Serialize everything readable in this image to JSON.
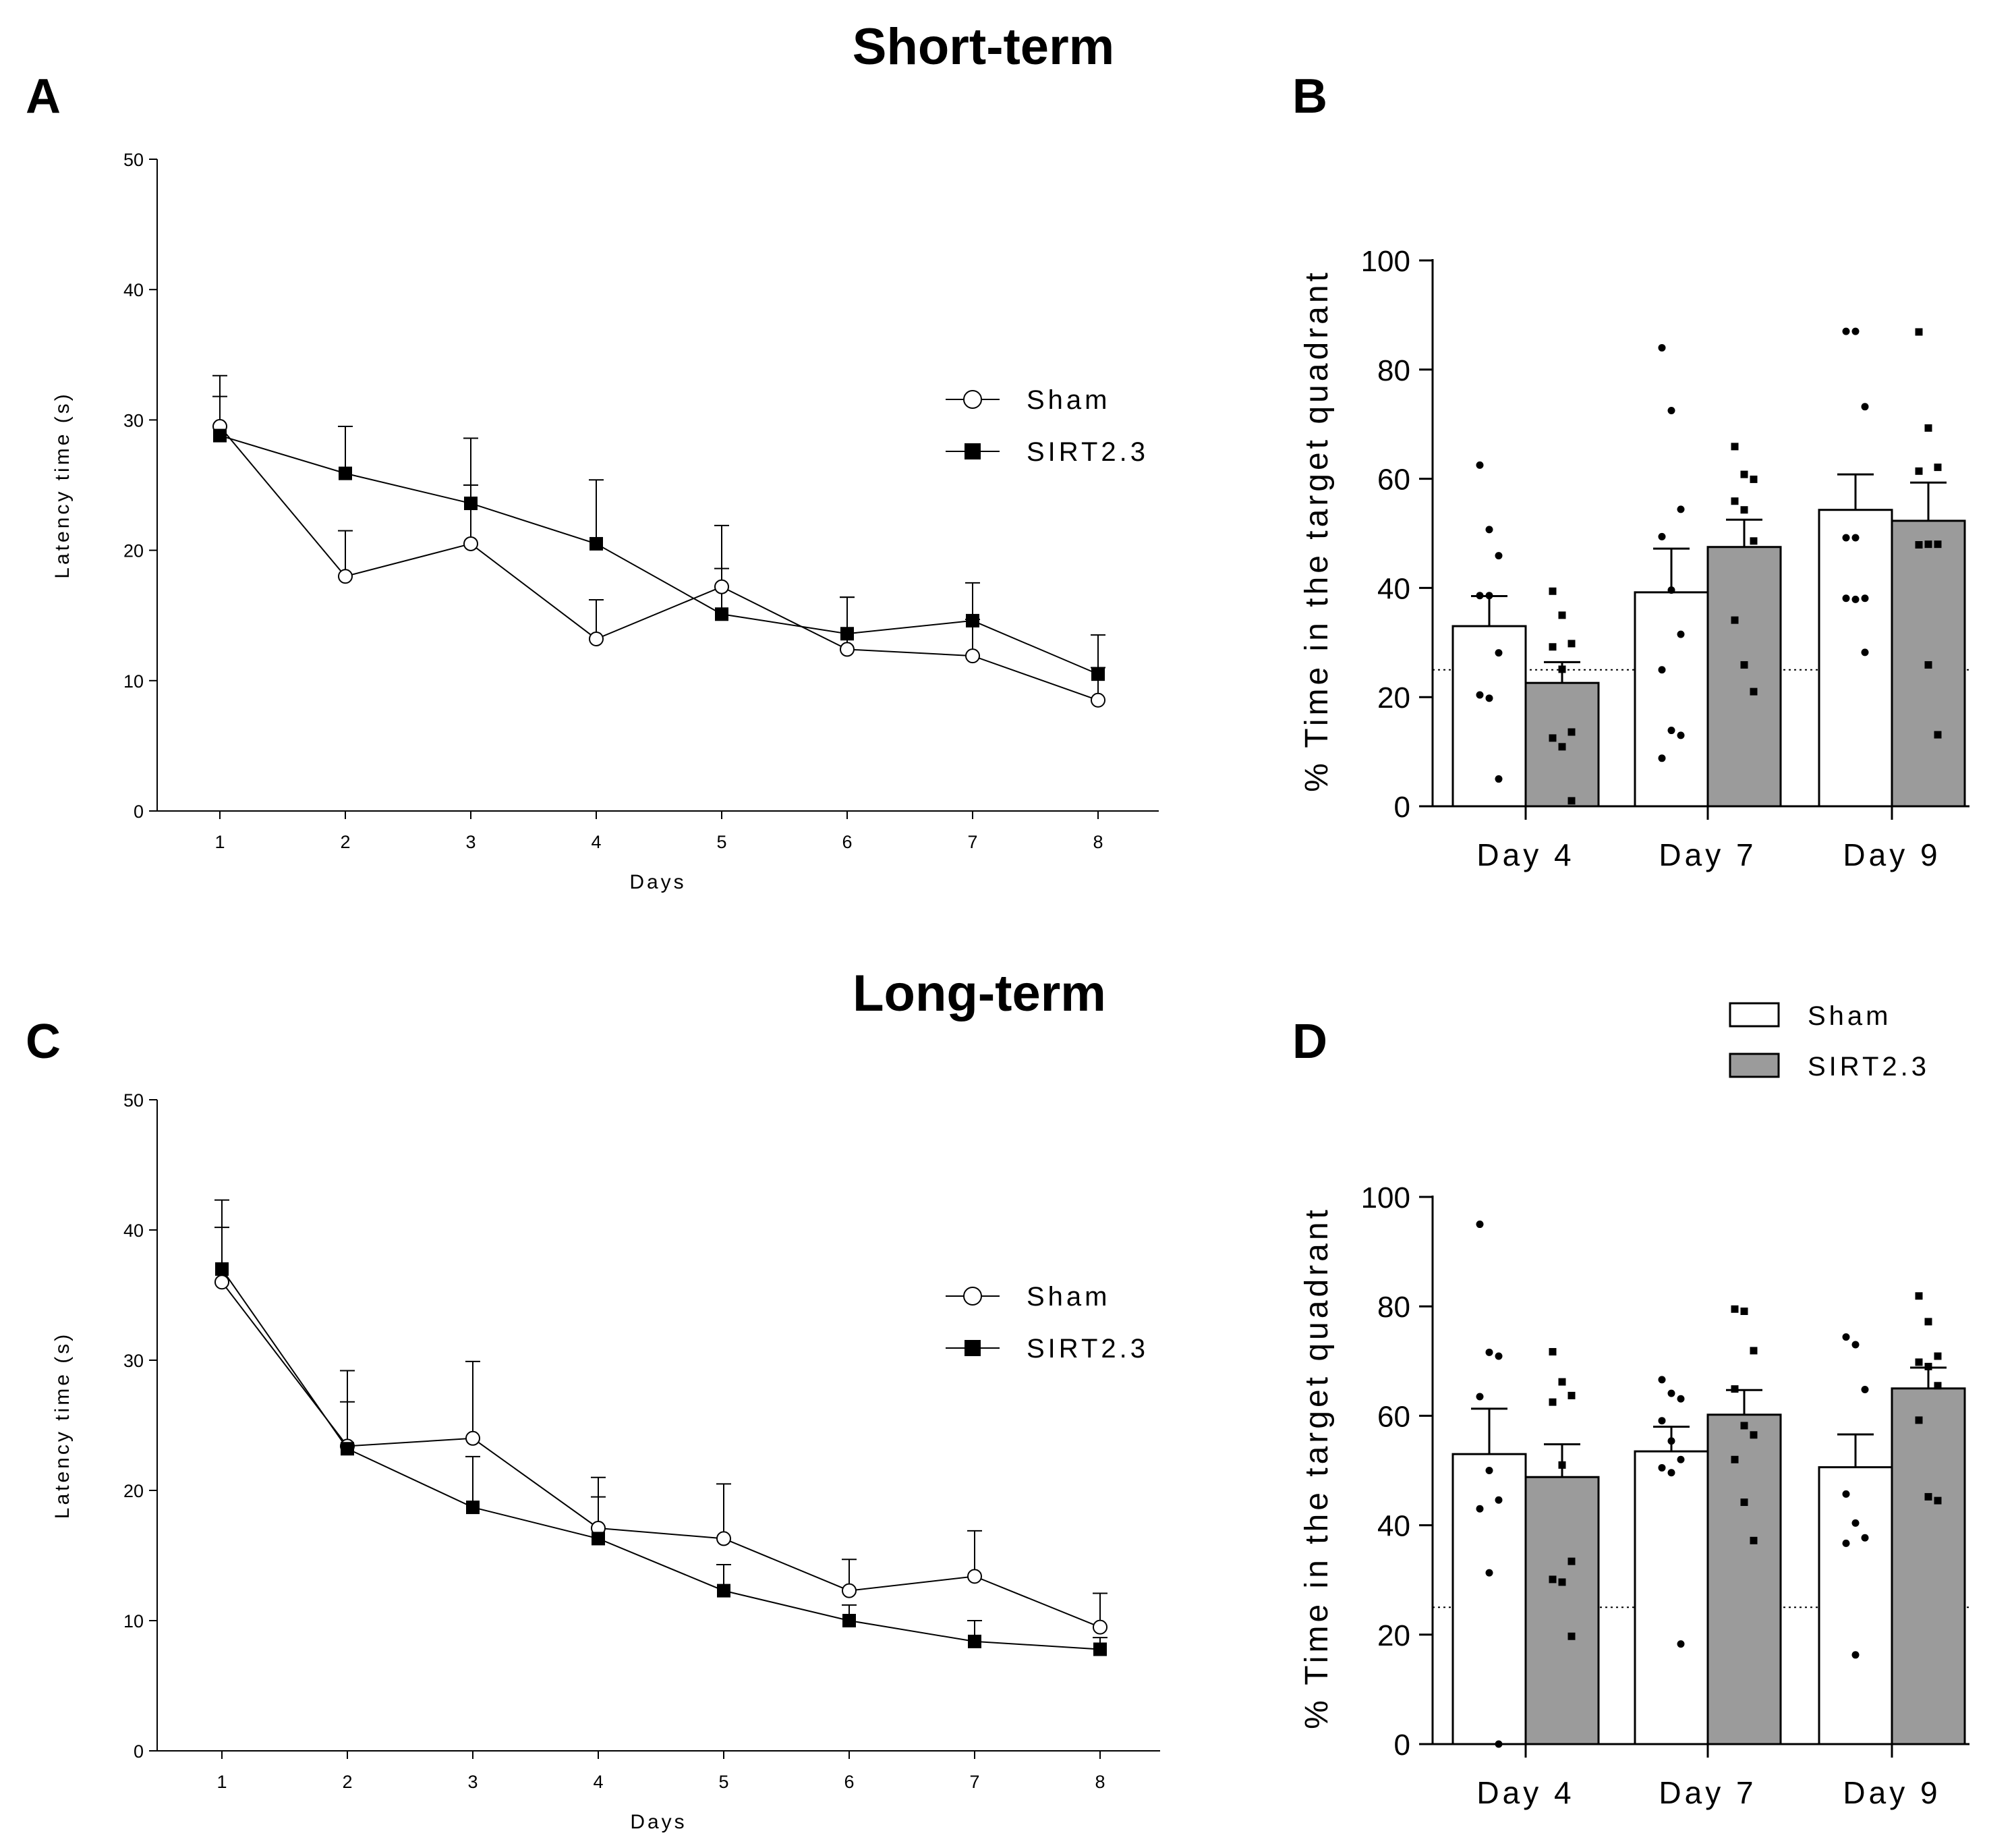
{
  "titles": {
    "short_term": "Short-term",
    "long_term": "Long-term"
  },
  "colors": {
    "sham_fill": "#ffffff",
    "sirt_fill": "#9b9b9b",
    "line": "#000000",
    "axis": "#000000"
  },
  "chart_data": [
    {
      "panel": "A",
      "type": "line",
      "title": "",
      "xlabel": "Days",
      "ylabel": "Latency time (s)",
      "x": [
        1,
        2,
        3,
        4,
        5,
        6,
        7,
        8
      ],
      "xticks": [
        "1",
        "2",
        "3",
        "4",
        "5",
        "6",
        "7",
        "8"
      ],
      "ylim": [
        0,
        50
      ],
      "yticks": [
        "0",
        "10",
        "20",
        "30",
        "40",
        "50"
      ],
      "legend": {
        "placement": "right",
        "entries": [
          "Sham",
          "SIRT2.3"
        ]
      },
      "series": [
        {
          "name": "Sham",
          "marker": "open-circle",
          "values": [
            29.5,
            18.0,
            20.5,
            13.2,
            17.2,
            12.4,
            11.9,
            8.5
          ],
          "err": [
            3.9,
            3.5,
            4.5,
            3.0,
            4.7,
            4.0,
            2.8,
            2.5
          ]
        },
        {
          "name": "SIRT2.3",
          "marker": "filled-square",
          "values": [
            28.8,
            25.9,
            23.6,
            20.5,
            15.1,
            13.6,
            14.6,
            10.5
          ],
          "err": [
            3.0,
            3.6,
            5.0,
            4.9,
            3.5,
            2.8,
            2.9,
            3.0
          ]
        }
      ]
    },
    {
      "panel": "B",
      "type": "bar",
      "title": "",
      "xlabel": "",
      "ylabel": "% Time in the target quadrant",
      "categories": [
        "Day 4",
        "Day 7",
        "Day 9"
      ],
      "ylim": [
        0,
        100
      ],
      "yticks": [
        "0",
        "20",
        "40",
        "60",
        "80",
        "100"
      ],
      "reference_line": 25,
      "series": [
        {
          "name": "Sham",
          "values": [
            33.0,
            39.2,
            54.3
          ],
          "err": [
            5.5,
            8.0,
            6.5
          ],
          "points": [
            [
              62.5,
              50.7,
              45.9,
              38.6,
              38.6,
              28.1,
              20.4,
              19.8,
              5.0
            ],
            [
              84.0,
              72.5,
              54.4,
              49.4,
              39.6,
              31.5,
              25.0,
              13.9,
              13.0,
              8.8
            ],
            [
              87.0,
              87.0,
              73.2,
              49.2,
              49.2,
              38.1,
              38.1,
              37.9,
              28.2
            ]
          ]
        },
        {
          "name": "SIRT2.3",
          "values": [
            22.6,
            47.5,
            52.3
          ],
          "err": [
            3.8,
            5.0,
            7.0
          ],
          "points": [
            [
              39.4,
              35.0,
              29.8,
              29.2,
              25.1,
              13.6,
              12.5,
              10.9,
              1.0
            ],
            [
              65.9,
              60.8,
              59.9,
              55.9,
              54.3,
              48.6,
              34.1,
              25.9,
              21.0
            ],
            [
              86.9,
              69.3,
              62.1,
              61.4,
              48.0,
              48.0,
              47.9,
              25.9,
              13.1
            ]
          ]
        }
      ]
    },
    {
      "panel": "C",
      "type": "line",
      "title": "",
      "xlabel": "Days",
      "ylabel": "Latency time (s)",
      "x": [
        1,
        2,
        3,
        4,
        5,
        6,
        7,
        8
      ],
      "xticks": [
        "1",
        "2",
        "3",
        "4",
        "5",
        "6",
        "7",
        "8"
      ],
      "ylim": [
        0,
        50
      ],
      "yticks": [
        "0",
        "10",
        "20",
        "30",
        "40",
        "50"
      ],
      "legend": {
        "placement": "right",
        "entries": [
          "Sham",
          "SIRT2.3"
        ]
      },
      "series": [
        {
          "name": "Sham",
          "marker": "open-circle",
          "values": [
            36.0,
            23.4,
            24.0,
            17.1,
            16.3,
            12.3,
            13.4,
            9.5
          ],
          "err": [
            6.3,
            5.8,
            5.9,
            3.9,
            4.2,
            2.4,
            3.5,
            2.6
          ]
        },
        {
          "name": "SIRT2.3",
          "marker": "filled-square",
          "values": [
            37.0,
            23.2,
            18.7,
            16.3,
            12.3,
            10.0,
            8.4,
            7.8
          ],
          "err": [
            3.2,
            3.6,
            3.9,
            3.2,
            2.0,
            1.2,
            1.6,
            0.9
          ]
        }
      ]
    },
    {
      "panel": "D",
      "type": "bar",
      "title": "",
      "xlabel": "",
      "ylabel": "% Time in the target quadrant",
      "categories": [
        "Day 4",
        "Day 7",
        "Day 9"
      ],
      "ylim": [
        0,
        100
      ],
      "yticks": [
        "0",
        "20",
        "40",
        "60",
        "80",
        "100"
      ],
      "reference_line": 25,
      "legend": {
        "placement": "top-right",
        "entries": [
          "Sham",
          "SIRT2.3"
        ]
      },
      "series": [
        {
          "name": "Sham",
          "values": [
            53.0,
            53.5,
            50.6
          ],
          "err": [
            8.3,
            4.5,
            6.0
          ],
          "points": [
            [
              95.0,
              71.6,
              70.9,
              63.5,
              50.0,
              44.6,
              43.0,
              31.3,
              0.0
            ],
            [
              66.6,
              64.1,
              63.1,
              59.1,
              55.4,
              52.0,
              50.5,
              49.6,
              18.3
            ],
            [
              74.4,
              73.0,
              64.8,
              45.7,
              40.4,
              37.7,
              36.7,
              16.3
            ]
          ]
        },
        {
          "name": "SIRT2.3",
          "values": [
            48.8,
            60.2,
            65.0
          ],
          "err": [
            6.0,
            4.5,
            3.8
          ],
          "points": [
            [
              71.7,
              66.2,
              63.7,
              62.5,
              51.0,
              33.4,
              30.1,
              29.6,
              19.7
            ],
            [
              79.5,
              79.1,
              71.9,
              64.9,
              58.2,
              56.5,
              52.0,
              44.2,
              37.2
            ],
            [
              81.9,
              77.2,
              70.9,
              69.8,
              69.0,
              65.5,
              59.2,
              45.2,
              44.5
            ]
          ]
        }
      ]
    }
  ]
}
